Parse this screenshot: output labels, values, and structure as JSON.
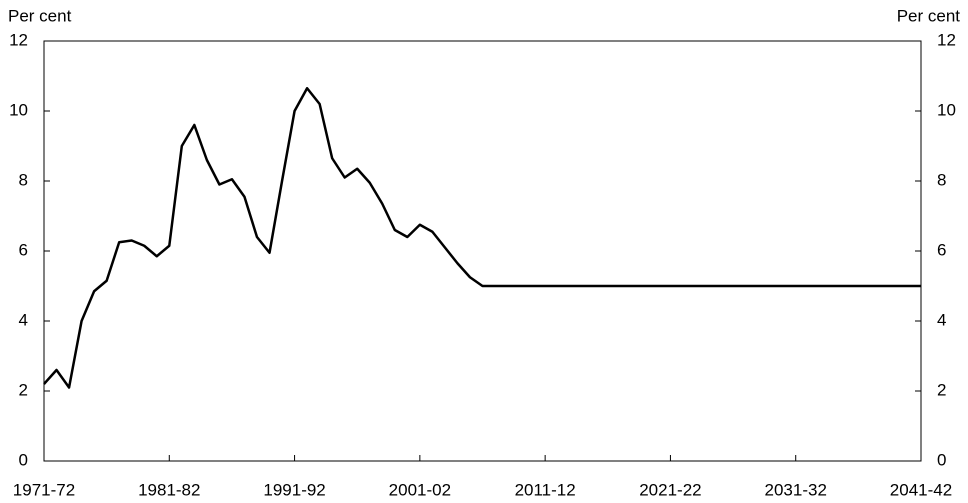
{
  "chart_data": {
    "type": "line",
    "y_label": "Per cent",
    "y2_label": "Per cent",
    "categories": [
      "1971-72",
      null,
      null,
      null,
      null,
      null,
      null,
      null,
      null,
      null,
      "1981-82",
      null,
      null,
      null,
      null,
      null,
      null,
      null,
      null,
      null,
      "1991-92",
      null,
      null,
      null,
      null,
      null,
      null,
      null,
      null,
      null,
      "2001-02",
      null,
      null,
      null,
      null,
      null,
      null,
      null,
      null,
      null,
      "2011-12",
      null,
      null,
      null,
      null,
      null,
      null,
      null,
      null,
      null,
      "2021-22",
      null,
      null,
      null,
      null,
      null,
      null,
      null,
      null,
      null,
      "2031-32",
      null,
      null,
      null,
      null,
      null,
      null,
      null,
      null,
      null,
      "2041-42"
    ],
    "series": [
      {
        "color": "#000000",
        "values": [
          2.2,
          2.6,
          2.1,
          4.0,
          4.85,
          5.15,
          6.25,
          6.3,
          6.15,
          5.85,
          6.15,
          9.0,
          9.6,
          8.6,
          7.9,
          8.05,
          7.55,
          6.4,
          5.95,
          8.0,
          10.0,
          10.65,
          10.2,
          8.65,
          8.1,
          8.35,
          7.95,
          7.35,
          6.6,
          6.4,
          6.75,
          6.55,
          6.1,
          5.65,
          5.25,
          5.0,
          5.0,
          5.0,
          5.0,
          5.0,
          5.0,
          5.0,
          5.0,
          5.0,
          5.0,
          5.0,
          5.0,
          5.0,
          5.0,
          5.0,
          5.0,
          5.0,
          5.0,
          5.0,
          5.0,
          5.0,
          5.0,
          5.0,
          5.0,
          5.0,
          5.0,
          5.0,
          5.0,
          5.0,
          5.0,
          5.0,
          5.0,
          5.0,
          5.0,
          5.0,
          5.0
        ]
      }
    ],
    "ylim": [
      0,
      12
    ],
    "yticks": [
      0,
      2,
      4,
      6,
      8,
      10,
      12
    ],
    "y2lim": [
      0,
      12
    ],
    "y2ticks": [
      0,
      2,
      4,
      6,
      8,
      10,
      12
    ]
  }
}
